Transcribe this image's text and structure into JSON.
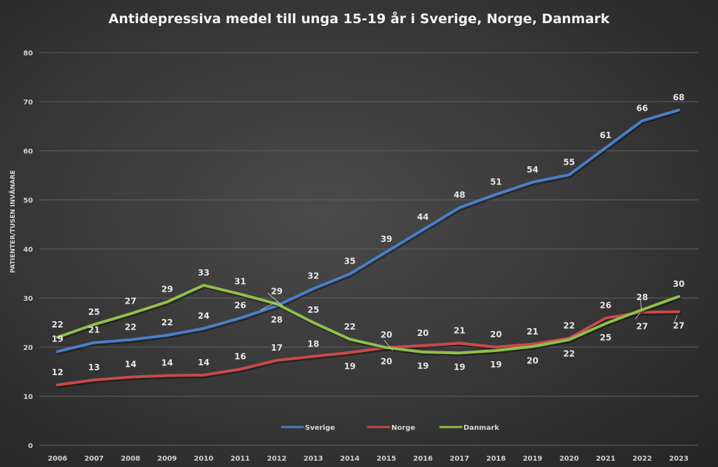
{
  "chart_data": {
    "type": "line",
    "title": "Antidepressiva medel till unga 15-19 år i Sverige, Norge, Danmark",
    "xlabel": "",
    "ylabel": "PATIENTER/TUSEN INVÅNARE",
    "ylim": [
      0,
      80
    ],
    "yticks": [
      "0",
      "10",
      "20",
      "30",
      "40",
      "50",
      "60",
      "70",
      "80"
    ],
    "ytick_values": [
      0,
      10,
      20,
      30,
      40,
      50,
      60,
      70,
      80
    ],
    "grid": true,
    "legend_position": "bottom-center",
    "categories": [
      "2006",
      "2007",
      "2008",
      "2009",
      "2010",
      "2011",
      "2012",
      "2013",
      "2014",
      "2015",
      "2016",
      "2017",
      "2018",
      "2019",
      "2020",
      "2021",
      "2022",
      "2023"
    ],
    "series": [
      {
        "name": "Sverige",
        "color": "#4a7fc8",
        "values": [
          19.1,
          20.9,
          21.5,
          22.4,
          23.8,
          25.9,
          28.4,
          31.9,
          34.9,
          39.4,
          43.9,
          48.4,
          51.1,
          53.6,
          55.1,
          60.6,
          66.1,
          68.3
        ],
        "labels": [
          "19",
          "21",
          "22",
          "22",
          "24",
          "26",
          "28",
          "32",
          "35",
          "39",
          "44",
          "48",
          "51",
          "54",
          "55",
          "61",
          "66",
          "68"
        ],
        "label_positions": [
          "above",
          "above",
          "above",
          "above",
          "above",
          "above",
          "below",
          "above",
          "above",
          "above",
          "above",
          "above",
          "above",
          "above",
          "above",
          "above",
          "above",
          "above"
        ]
      },
      {
        "name": "Norge",
        "color": "#c84a4a",
        "values": [
          12.3,
          13.3,
          13.9,
          14.2,
          14.3,
          15.5,
          17.3,
          18.1,
          18.9,
          19.9,
          20.3,
          20.8,
          20.0,
          20.6,
          21.8,
          25.9,
          27.1,
          27.2
        ],
        "labels": [
          "12",
          "13",
          "14",
          "14",
          "14",
          "16",
          "17",
          "18",
          "19",
          "20",
          "20",
          "21",
          "20",
          "21",
          "22",
          "26",
          "27",
          "27"
        ],
        "label_positions": [
          "above",
          "above",
          "above",
          "above",
          "above",
          "above",
          "above",
          "above",
          "below",
          "above",
          "above",
          "above",
          "above",
          "above",
          "above",
          "above",
          "below",
          "below"
        ]
      },
      {
        "name": "Danmark",
        "color": "#8fc04a",
        "values": [
          22.0,
          24.6,
          26.8,
          29.2,
          32.6,
          30.8,
          28.8,
          25.0,
          21.6,
          19.9,
          19.0,
          18.8,
          19.3,
          20.1,
          21.5,
          24.8,
          27.6,
          30.3
        ],
        "labels": [
          "22",
          "25",
          "27",
          "29",
          "33",
          "31",
          "29",
          "25",
          "22",
          "20",
          "19",
          "19",
          "19",
          "20",
          "22",
          "25",
          "28",
          "30"
        ],
        "label_positions": [
          "above",
          "above",
          "above",
          "above",
          "above",
          "above",
          "above",
          "above",
          "above",
          "below",
          "below",
          "below",
          "below",
          "below",
          "below",
          "below",
          "above",
          "above"
        ]
      }
    ]
  }
}
